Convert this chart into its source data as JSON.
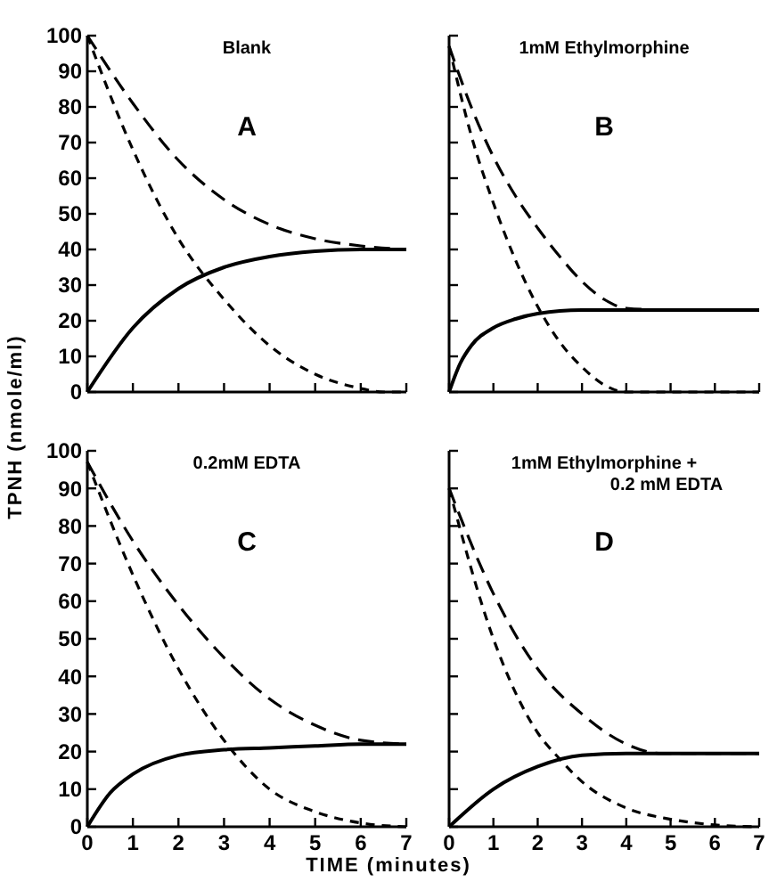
{
  "chart_data": [
    {
      "type": "line",
      "title": "Blank",
      "annotations": [
        "A"
      ],
      "ylabel": "TPNH (nmole/ml)",
      "xlim": [
        0,
        7
      ],
      "ylim": [
        0,
        100
      ],
      "xticks": [
        0,
        1,
        2,
        3,
        4,
        5,
        6,
        7
      ],
      "yticks": [
        0,
        10,
        20,
        30,
        40,
        50,
        60,
        70,
        80,
        90,
        100
      ],
      "tick_labels": "y",
      "grid": false,
      "marker": "none",
      "series": [
        {
          "color": "#000000",
          "line_style": "dashed",
          "x": [
            0,
            1,
            2,
            3,
            4,
            5,
            6,
            7
          ],
          "values": [
            100,
            81,
            65,
            54,
            47,
            43,
            41,
            40
          ]
        },
        {
          "color": "#000000",
          "line_style": "dashed",
          "x": [
            0,
            1,
            2,
            3,
            4,
            5,
            6,
            6.5,
            7
          ],
          "values": [
            100,
            68,
            43,
            26,
            13,
            5,
            1,
            0,
            0
          ]
        },
        {
          "color": "#000000",
          "line_style": "solid",
          "x": [
            0,
            1,
            2,
            3,
            4,
            5,
            6,
            7
          ],
          "values": [
            0,
            18,
            29,
            35,
            38,
            39.5,
            40,
            40
          ]
        }
      ]
    },
    {
      "type": "line",
      "title": "1mM Ethylmorphine",
      "annotations": [
        "B"
      ],
      "xlim": [
        0,
        7
      ],
      "ylim": [
        0,
        100
      ],
      "xticks": [
        0,
        1,
        2,
        3,
        4,
        5,
        6,
        7
      ],
      "yticks": [
        0,
        10,
        20,
        30,
        40,
        50,
        60,
        70,
        80,
        90,
        100
      ],
      "tick_labels": false,
      "grid": false,
      "marker": "none",
      "series": [
        {
          "color": "#000000",
          "line_style": "dashed",
          "x": [
            0,
            0.5,
            1,
            1.5,
            2,
            2.5,
            3,
            3.5,
            4,
            5,
            7
          ],
          "values": [
            97,
            80,
            66,
            55,
            46,
            38,
            31,
            26,
            23.5,
            23,
            23
          ]
        },
        {
          "color": "#000000",
          "line_style": "dashed",
          "x": [
            0,
            0.5,
            1,
            1.5,
            2,
            2.5,
            3,
            3.5,
            4,
            7
          ],
          "values": [
            97,
            72,
            53,
            37,
            24,
            14,
            7,
            2,
            0,
            0
          ]
        },
        {
          "color": "#000000",
          "line_style": "solid",
          "x": [
            0,
            0.25,
            0.5,
            1,
            1.5,
            2,
            3,
            7
          ],
          "values": [
            0,
            8,
            13,
            18,
            20.5,
            22,
            23,
            23
          ]
        }
      ]
    },
    {
      "type": "line",
      "title": "0.2mM EDTA",
      "annotations": [
        "C"
      ],
      "xlabel": "TIME (minutes)",
      "xlim": [
        0,
        7
      ],
      "ylim": [
        0,
        100
      ],
      "xticks": [
        0,
        1,
        2,
        3,
        4,
        5,
        6,
        7
      ],
      "yticks": [
        0,
        10,
        20,
        30,
        40,
        50,
        60,
        70,
        80,
        90,
        100
      ],
      "grid": false,
      "marker": "none",
      "series": [
        {
          "color": "#000000",
          "line_style": "dashed",
          "x": [
            0,
            1,
            2,
            3,
            4,
            5,
            6,
            7
          ],
          "values": [
            97,
            76,
            59,
            45,
            34,
            27,
            23,
            22
          ]
        },
        {
          "color": "#000000",
          "line_style": "dashed",
          "x": [
            0,
            1,
            2,
            3,
            4,
            5,
            6,
            7
          ],
          "values": [
            97,
            67,
            42,
            23,
            10,
            4,
            1,
            0
          ]
        },
        {
          "color": "#000000",
          "line_style": "solid",
          "x": [
            0,
            0.5,
            1,
            2,
            3,
            4,
            5,
            6,
            7
          ],
          "values": [
            0,
            9,
            14,
            19,
            20.5,
            21,
            21.5,
            22,
            22
          ]
        }
      ]
    },
    {
      "type": "line",
      "title": "1mM Ethylmorphine +",
      "subtitle": "0.2 mM EDTA",
      "annotations": [
        "D"
      ],
      "xlim": [
        0,
        7
      ],
      "ylim": [
        0,
        100
      ],
      "xticks": [
        0,
        1,
        2,
        3,
        4,
        5,
        6,
        7
      ],
      "yticks": [
        0,
        10,
        20,
        30,
        40,
        50,
        60,
        70,
        80,
        90,
        100
      ],
      "tick_labels": "x",
      "grid": false,
      "marker": "none",
      "series": [
        {
          "color": "#000000",
          "line_style": "dashed",
          "x": [
            0,
            1,
            2,
            3,
            4,
            4.8,
            7
          ],
          "values": [
            90,
            62,
            42,
            30,
            22,
            19.5,
            19.5
          ]
        },
        {
          "color": "#000000",
          "line_style": "dashed",
          "x": [
            0,
            1,
            2,
            2.5,
            3,
            4,
            5,
            6,
            7
          ],
          "values": [
            90,
            50,
            25,
            18,
            12,
            5,
            2,
            0.5,
            0
          ]
        },
        {
          "color": "#000000",
          "line_style": "solid",
          "x": [
            0,
            1,
            2,
            3,
            4,
            7
          ],
          "values": [
            0,
            10,
            16,
            19,
            19.5,
            19.5
          ]
        }
      ]
    }
  ]
}
